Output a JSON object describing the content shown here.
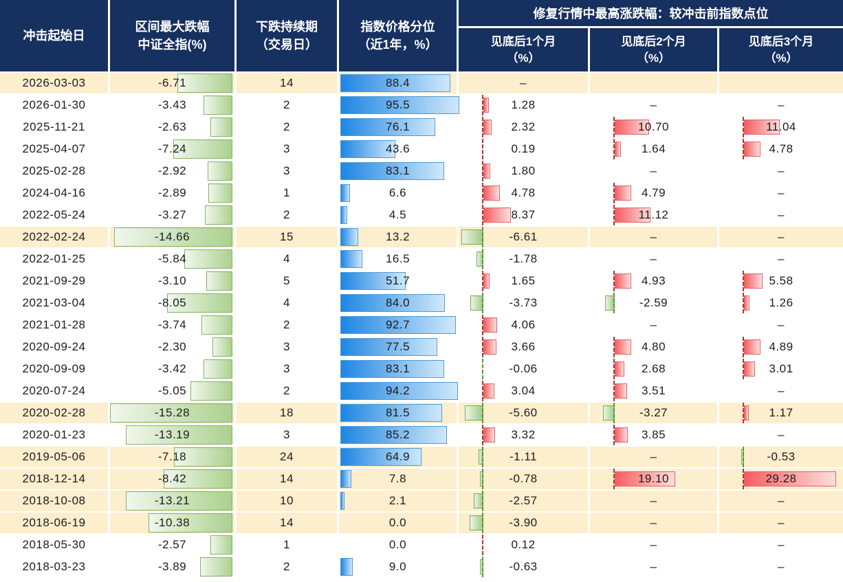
{
  "header": {
    "col1": "冲击起始日",
    "col2_line1": "区间最大跌幅",
    "col2_line2": "中证全指(%)",
    "col3_line1": "下跌持续期",
    "col3_line2": "（交易日）",
    "col4_line1": "指数价格分位",
    "col4_line2": "（近1年，%）",
    "group_title": "修复行情中最高涨跌幅：较冲击前指数点位",
    "month1_line1": "见底后1个月",
    "month1_line2": "（%）",
    "month2_line1": "见底后2个月",
    "month2_line2": "（%）",
    "month3_line1": "见底后3个月",
    "month3_line2": "（%）"
  },
  "missing_placeholder": "–",
  "colors": {
    "header_bg": "#16305f",
    "highlight_row_bg": "#fdeecd",
    "drawdown_bar": "#abd18f",
    "percentile_bar": "#1e86e2",
    "gain_bar": "#f55e61",
    "loss_bar": "#a2cb87",
    "gain_axis": "#b53333",
    "loss_axis": "#58953f"
  },
  "chart_data": {
    "type": "table",
    "columns": [
      "冲击起始日",
      "区间最大跌幅 中证全指(%)",
      "下跌持续期（交易日）",
      "指数价格分位（近1年，%）",
      "修复行情中最高涨跌幅 见底后1个月（%）",
      "修复行情中最高涨跌幅 见底后2个月（%）",
      "修复行情中最高涨跌幅 见底后3个月（%）"
    ],
    "rows": [
      {
        "date": "2026-03-03",
        "dd": -6.71,
        "days": 14,
        "pct": 88.4,
        "m1": null,
        "hl": true
      },
      {
        "date": "2026-01-30",
        "dd": -3.43,
        "days": 2,
        "pct": 95.5,
        "m1": 1.28,
        "m2": null,
        "m3": null
      },
      {
        "date": "2025-11-21",
        "dd": -2.63,
        "days": 2,
        "pct": 76.1,
        "m1": 2.32,
        "m2": 10.7,
        "m3": 11.04
      },
      {
        "date": "2025-04-07",
        "dd": -7.24,
        "days": 3,
        "pct": 43.6,
        "m1": 0.19,
        "m2": 1.64,
        "m3": 4.78
      },
      {
        "date": "2025-02-28",
        "dd": -2.92,
        "days": 3,
        "pct": 83.1,
        "m1": 1.8,
        "m2": null,
        "m3": null
      },
      {
        "date": "2024-04-16",
        "dd": -2.89,
        "days": 1,
        "pct": 6.6,
        "m1": 4.78,
        "m2": 4.79,
        "m3": null
      },
      {
        "date": "2022-05-24",
        "dd": -3.27,
        "days": 2,
        "pct": 4.5,
        "m1": 8.37,
        "m2": 11.12,
        "m3": null
      },
      {
        "date": "2022-02-24",
        "dd": -14.66,
        "days": 15,
        "pct": 13.2,
        "m1": -6.61,
        "m2": null,
        "m3": null,
        "hl": true
      },
      {
        "date": "2022-01-25",
        "dd": -5.84,
        "days": 4,
        "pct": 16.5,
        "m1": -1.78,
        "m2": null,
        "m3": null
      },
      {
        "date": "2021-09-29",
        "dd": -3.1,
        "days": 5,
        "pct": 51.7,
        "m1": 1.65,
        "m2": 4.93,
        "m3": 5.58
      },
      {
        "date": "2021-03-04",
        "dd": -8.05,
        "days": 4,
        "pct": 84.0,
        "m1": -3.73,
        "m2": -2.59,
        "m3": 1.26
      },
      {
        "date": "2021-01-28",
        "dd": -3.74,
        "days": 2,
        "pct": 92.7,
        "m1": 4.06,
        "m2": null,
        "m3": null
      },
      {
        "date": "2020-09-24",
        "dd": -2.3,
        "days": 3,
        "pct": 77.5,
        "m1": 3.66,
        "m2": 4.8,
        "m3": 4.89
      },
      {
        "date": "2020-09-09",
        "dd": -3.42,
        "days": 3,
        "pct": 83.1,
        "m1": -0.06,
        "m2": 2.68,
        "m3": 3.01
      },
      {
        "date": "2020-07-24",
        "dd": -5.05,
        "days": 2,
        "pct": 94.2,
        "m1": 3.04,
        "m2": 3.51,
        "m3": null
      },
      {
        "date": "2020-02-28",
        "dd": -15.28,
        "days": 18,
        "pct": 81.5,
        "m1": -5.6,
        "m2": -3.27,
        "m3": 1.17,
        "hl": true
      },
      {
        "date": "2020-01-23",
        "dd": -13.19,
        "days": 3,
        "pct": 85.2,
        "m1": 3.32,
        "m2": 3.85,
        "m3": null
      },
      {
        "date": "2019-05-06",
        "dd": -7.18,
        "days": 24,
        "pct": 64.9,
        "m1": -1.11,
        "m2": null,
        "m3": -0.53,
        "hl": true
      },
      {
        "date": "2018-12-14",
        "dd": -8.42,
        "days": 14,
        "pct": 7.8,
        "m1": -0.78,
        "m2": 19.1,
        "m3": 29.28,
        "hl": true
      },
      {
        "date": "2018-10-08",
        "dd": -13.21,
        "days": 10,
        "pct": 2.1,
        "m1": -2.57,
        "m2": null,
        "m3": null,
        "hl": true
      },
      {
        "date": "2018-06-19",
        "dd": -10.38,
        "days": 14,
        "pct": 0.0,
        "m1": -3.9,
        "m2": null,
        "m3": null,
        "hl": true
      },
      {
        "date": "2018-05-30",
        "dd": -2.57,
        "days": 1,
        "pct": 0.0,
        "m1": 0.12,
        "m2": null,
        "m3": null
      },
      {
        "date": "2018-03-23",
        "dd": -3.89,
        "days": 2,
        "pct": 9.0,
        "m1": -0.63,
        "m2": null,
        "m3": null
      }
    ]
  }
}
